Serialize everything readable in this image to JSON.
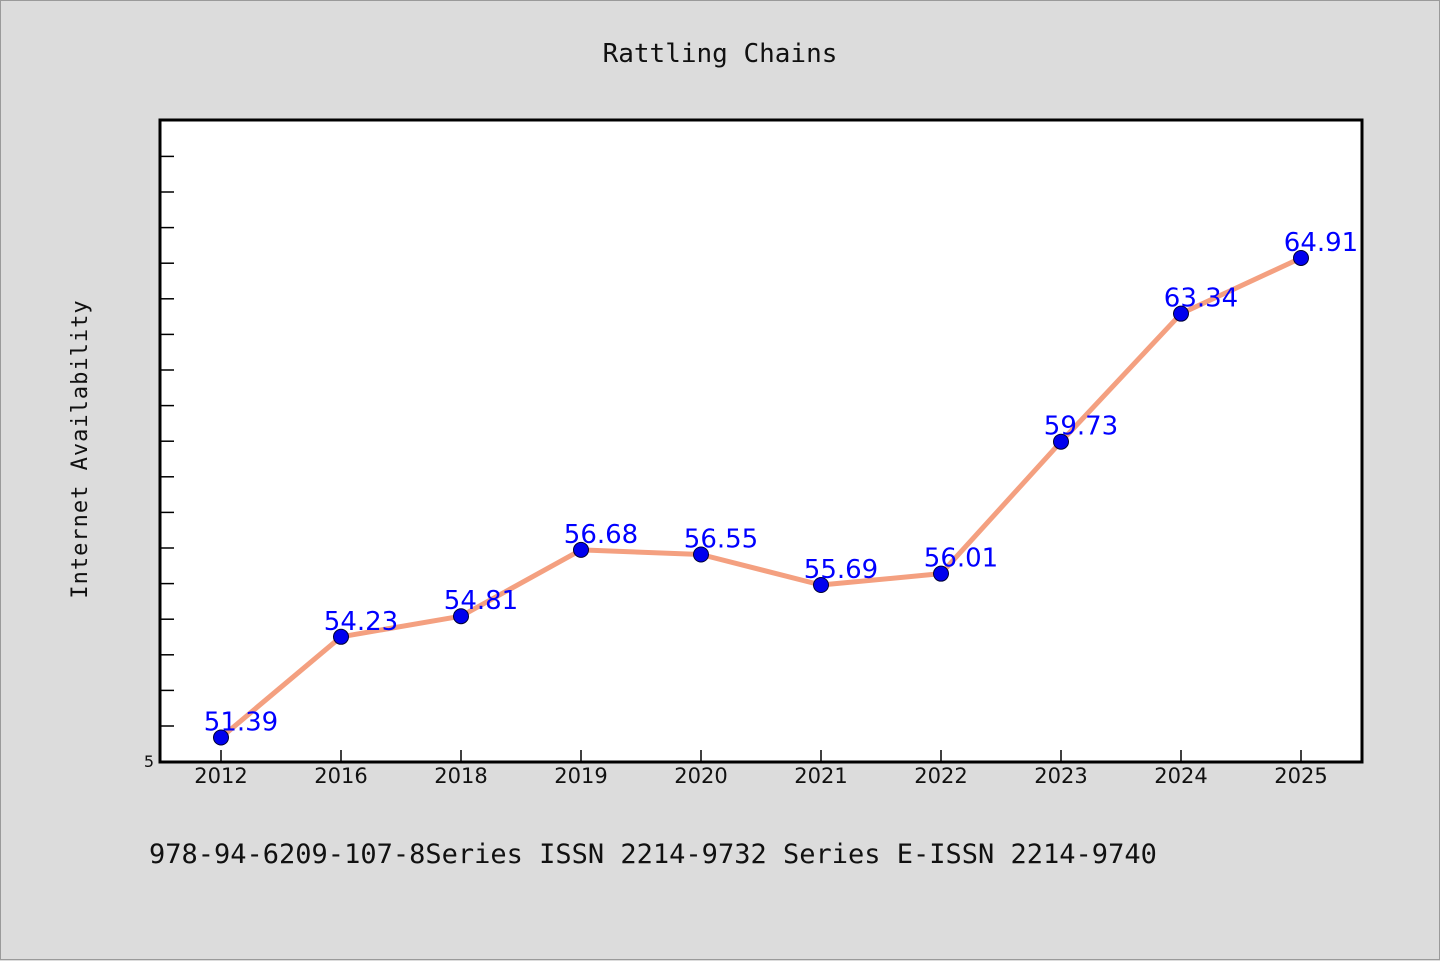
{
  "chart_data": {
    "type": "line",
    "title": "Rattling Chains",
    "xlabel": "",
    "ylabel": "Internet Availability",
    "categories": [
      "2012",
      "2016",
      "2018",
      "2019",
      "2020",
      "2021",
      "2022",
      "2023",
      "2024",
      "2025"
    ],
    "series": [
      {
        "values": [
          51.39,
          54.23,
          54.81,
          56.68,
          56.55,
          55.69,
          56.01,
          59.73,
          63.34,
          64.91
        ],
        "line_color": "#f4a080",
        "marker_color": "#0000ee"
      }
    ],
    "data_labels": [
      "51.39",
      "54.23",
      "54.81",
      "56.68",
      "56.55",
      "55.69",
      "56.01",
      "59.73",
      "63.34",
      "64.91"
    ],
    "y_tick_labels": [
      "5"
    ],
    "ylim": [
      50.7,
      68.8
    ],
    "grid": false,
    "legend": "none"
  },
  "footer": {
    "text": "978-94-6209-107-8Series ISSN 2214-9732 Series E-ISSN 2214-9740"
  },
  "colors": {
    "background": "#dcdcdc",
    "plot_background": "#ffffff",
    "line": "#f4a080",
    "marker": "#0000ee",
    "data_label": "#0000ff"
  }
}
